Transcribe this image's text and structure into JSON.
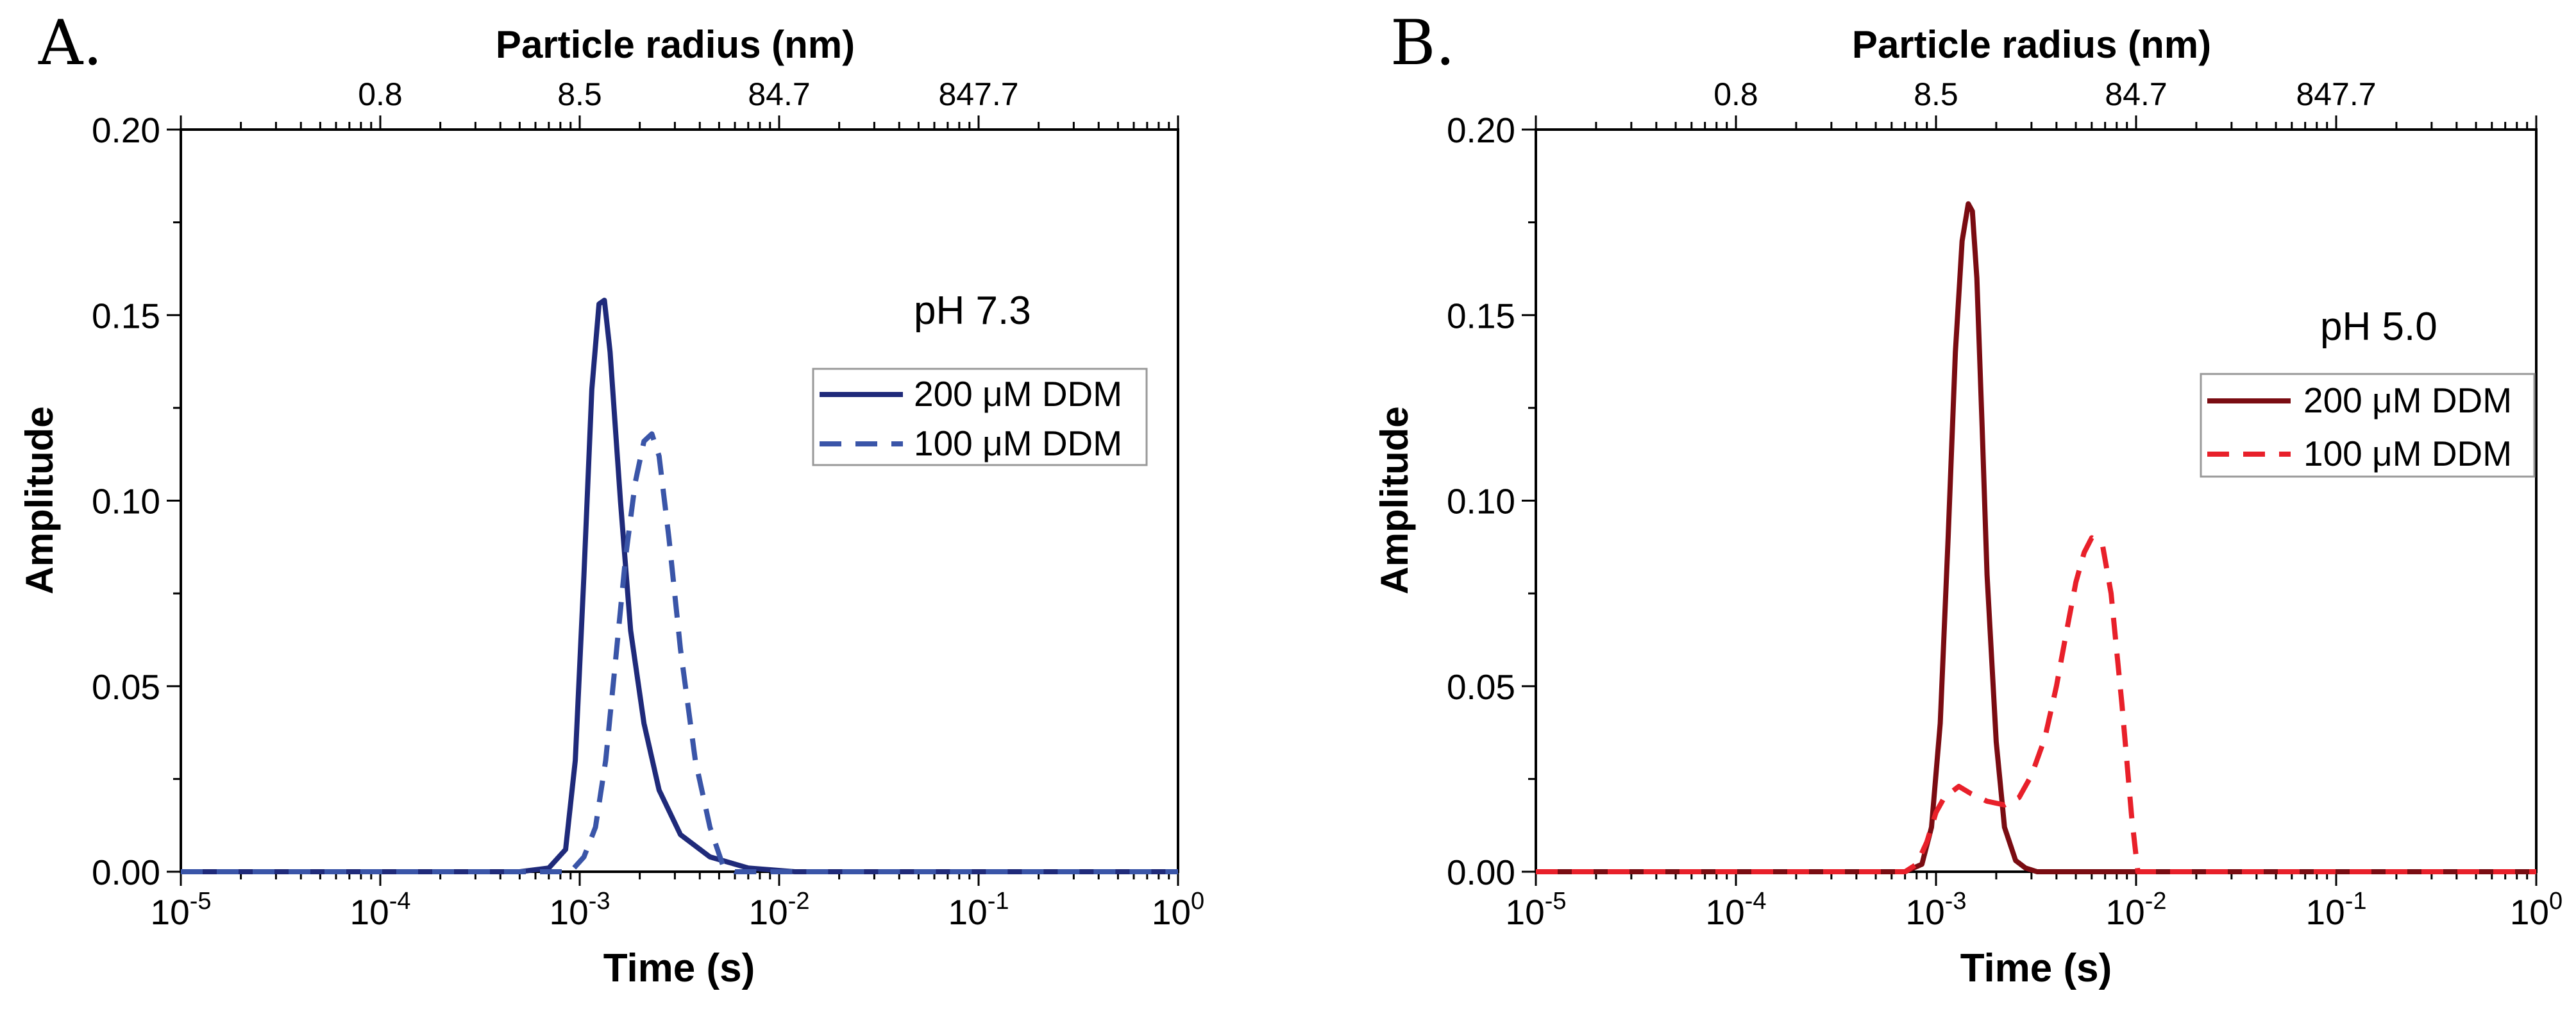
{
  "chart_data": [
    {
      "type": "line",
      "panel_label": "A.",
      "annotation": "pH 7.3",
      "xlabel": "Time (s)",
      "ylabel": "Amplitude",
      "top_axis_label": "Particle radius (nm)",
      "x_scale": "log",
      "xlim": [
        1e-05,
        1
      ],
      "ylim": [
        0,
        0.2
      ],
      "x_ticks": [
        {
          "base": "10",
          "exp": "-5"
        },
        {
          "base": "10",
          "exp": "-4"
        },
        {
          "base": "10",
          "exp": "-3"
        },
        {
          "base": "10",
          "exp": "-2"
        },
        {
          "base": "10",
          "exp": "-1"
        },
        {
          "base": "10",
          "exp": "0"
        }
      ],
      "y_ticks": [
        "0.00",
        "0.05",
        "0.10",
        "0.15",
        "0.20"
      ],
      "top_ticks": [
        {
          "label": "0.8",
          "x": 0.0001
        },
        {
          "label": "8.5",
          "x": 0.001
        },
        {
          "label": "84.7",
          "x": 0.01
        },
        {
          "label": "847.7",
          "x": 0.1
        }
      ],
      "legend": {
        "placement": "right-middle"
      },
      "series": [
        {
          "name": "200 μM DDM",
          "color": "#1f2a7a",
          "style": "solid",
          "x": [
            1e-05,
            0.0005,
            0.0007,
            0.00085,
            0.00095,
            0.00105,
            0.00115,
            0.00125,
            0.00133,
            0.00142,
            0.0016,
            0.0018,
            0.0021,
            0.0025,
            0.0032,
            0.0045,
            0.007,
            0.012,
            1
          ],
          "y": [
            0,
            0,
            0.001,
            0.006,
            0.03,
            0.08,
            0.13,
            0.153,
            0.154,
            0.14,
            0.1,
            0.065,
            0.04,
            0.022,
            0.01,
            0.004,
            0.001,
            0,
            0
          ]
        },
        {
          "name": "100 μM DDM",
          "color": "#3a55a8",
          "style": "dashed",
          "x": [
            1e-05,
            0.0009,
            0.00105,
            0.0012,
            0.00135,
            0.0015,
            0.0017,
            0.0019,
            0.0021,
            0.0023,
            0.0025,
            0.0028,
            0.0032,
            0.0038,
            0.0045,
            0.0052,
            0.006,
            1
          ],
          "y": [
            0,
            0,
            0.004,
            0.012,
            0.03,
            0.055,
            0.085,
            0.105,
            0.116,
            0.118,
            0.112,
            0.09,
            0.06,
            0.03,
            0.012,
            0.002,
            0,
            0
          ]
        }
      ]
    },
    {
      "type": "line",
      "panel_label": "B.",
      "annotation": "pH 5.0",
      "xlabel": "Time (s)",
      "ylabel": "Amplitude",
      "top_axis_label": "Particle radius (nm)",
      "x_scale": "log",
      "xlim": [
        1e-05,
        1
      ],
      "ylim": [
        0,
        0.2
      ],
      "x_ticks": [
        {
          "base": "10",
          "exp": "-5"
        },
        {
          "base": "10",
          "exp": "-4"
        },
        {
          "base": "10",
          "exp": "-3"
        },
        {
          "base": "10",
          "exp": "-2"
        },
        {
          "base": "10",
          "exp": "-1"
        },
        {
          "base": "10",
          "exp": "0"
        }
      ],
      "y_ticks": [
        "0.00",
        "0.05",
        "0.10",
        "0.15",
        "0.20"
      ],
      "top_ticks": [
        {
          "label": "0.8",
          "x": 0.0001
        },
        {
          "label": "8.5",
          "x": 0.001
        },
        {
          "label": "84.7",
          "x": 0.01
        },
        {
          "label": "847.7",
          "x": 0.1
        }
      ],
      "legend": {
        "placement": "right-middle"
      },
      "series": [
        {
          "name": "200 μM DDM",
          "color": "#7a0c12",
          "style": "solid",
          "x": [
            1e-05,
            0.0007,
            0.00085,
            0.00095,
            0.00105,
            0.00115,
            0.00125,
            0.00135,
            0.00145,
            0.00152,
            0.0016,
            0.0017,
            0.0018,
            0.002,
            0.0022,
            0.0025,
            0.0028,
            0.0032,
            1
          ],
          "y": [
            0,
            0,
            0.002,
            0.012,
            0.04,
            0.09,
            0.14,
            0.17,
            0.18,
            0.178,
            0.16,
            0.12,
            0.08,
            0.035,
            0.012,
            0.003,
            0.001,
            0,
            0
          ]
        },
        {
          "name": "100 μM DDM",
          "color": "#e8202a",
          "style": "dashed",
          "x": [
            1e-05,
            0.0007,
            0.0008,
            0.0009,
            0.001,
            0.0011,
            0.0013,
            0.0015,
            0.0018,
            0.0022,
            0.0026,
            0.003,
            0.0035,
            0.004,
            0.0045,
            0.005,
            0.0055,
            0.006,
            0.0068,
            0.0075,
            0.0085,
            0.0095,
            0.0102,
            1
          ],
          "y": [
            0,
            0,
            0.002,
            0.008,
            0.016,
            0.02,
            0.023,
            0.021,
            0.019,
            0.018,
            0.02,
            0.026,
            0.036,
            0.05,
            0.065,
            0.078,
            0.086,
            0.09,
            0.088,
            0.075,
            0.045,
            0.015,
            0,
            0
          ]
        }
      ]
    }
  ]
}
